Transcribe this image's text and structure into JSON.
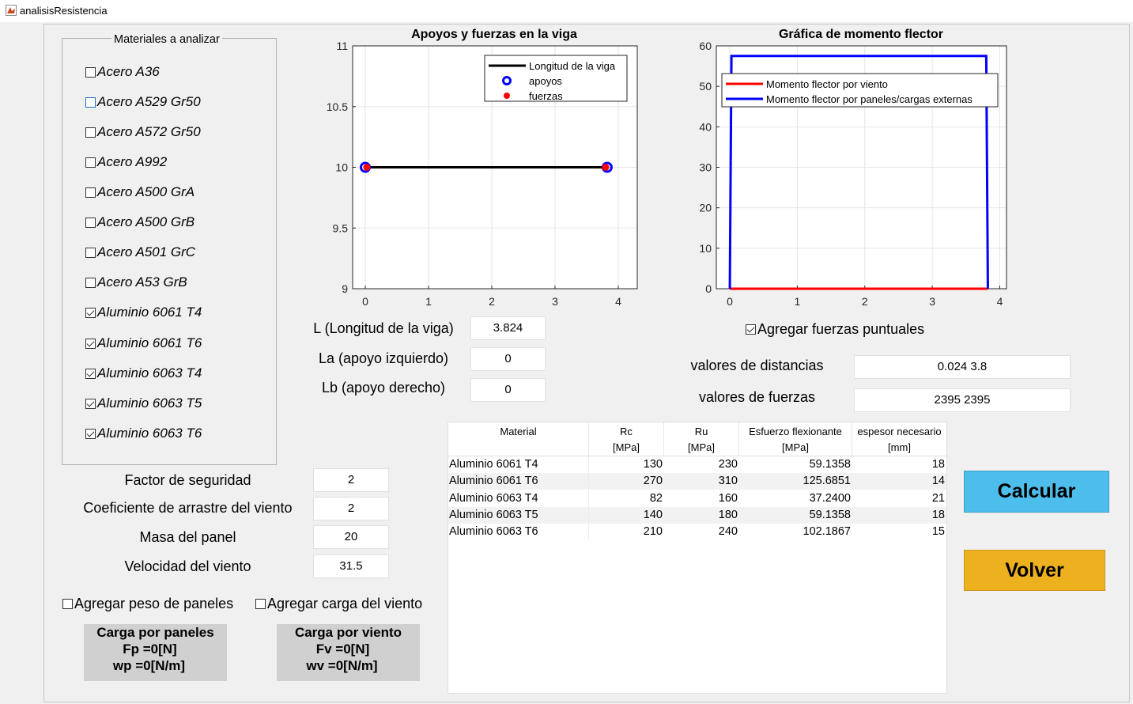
{
  "window": {
    "title": "analisisResistencia"
  },
  "materials": {
    "title": "Materiales a analizar",
    "items": [
      {
        "label": "Acero A36",
        "checked": false
      },
      {
        "label": "Acero A529 Gr50",
        "checked": false
      },
      {
        "label": "Acero A572 Gr50",
        "checked": false
      },
      {
        "label": "Acero A992",
        "checked": false
      },
      {
        "label": "Acero A500 GrA",
        "checked": false
      },
      {
        "label": "Acero A500 GrB",
        "checked": false
      },
      {
        "label": "Acero A501 GrC",
        "checked": false
      },
      {
        "label": "Acero A53 GrB",
        "checked": false
      },
      {
        "label": "Aluminio 6061 T4",
        "checked": true
      },
      {
        "label": "Aluminio 6061 T6",
        "checked": true
      },
      {
        "label": "Aluminio 6063 T4",
        "checked": true
      },
      {
        "label": "Aluminio 6063 T5",
        "checked": true
      },
      {
        "label": "Aluminio 6063 T6",
        "checked": true
      }
    ]
  },
  "beam": {
    "L_label": "L (Longitud de la viga)",
    "L_value": "3.824",
    "La_label": "La (apoyo izquierdo)",
    "La_value": "0",
    "Lb_label": "Lb (apoyo derecho)",
    "Lb_value": "0"
  },
  "params": {
    "safety_label": "Factor de seguridad",
    "safety_value": "2",
    "drag_label": "Coeficiente de arrastre del viento",
    "drag_value": "2",
    "mass_label": "Masa del panel",
    "mass_value": "20",
    "wind_label": "Velocidad del viento",
    "wind_value": "31.5"
  },
  "options": {
    "panel_weight_label": "Agregar peso de paneles",
    "panel_weight_checked": false,
    "wind_load_label": "Agregar carga del viento",
    "wind_load_checked": false,
    "point_forces_label": "Agregar fuerzas puntuales",
    "point_forces_checked": true
  },
  "loads": {
    "panel_title": "Carga por paneles",
    "panel_fp": "Fp =0[N]",
    "panel_wp": "wp =0[N/m]",
    "wind_title": "Carga por viento",
    "wind_fv": "Fv =0[N]",
    "wind_wv": "wv =0[N/m]"
  },
  "point_forces": {
    "distances_label": "valores de distancias",
    "distances_value": "0.024  3.8",
    "forces_label": "valores de fuerzas",
    "forces_value": "2395  2395"
  },
  "buttons": {
    "calc": "Calcular",
    "back": "Volver"
  },
  "results_table": {
    "headers": [
      {
        "line1": "Material",
        "line2": ""
      },
      {
        "line1": "Rc",
        "line2": "[MPa]"
      },
      {
        "line1": "Ru",
        "line2": "[MPa]"
      },
      {
        "line1": "Esfuerzo flexionante",
        "line2": "[MPa]"
      },
      {
        "line1": "espesor necesario",
        "line2": "[mm]"
      }
    ],
    "rows": [
      [
        "Aluminio 6061 T4",
        "130",
        "230",
        "59.1358",
        "18"
      ],
      [
        "Aluminio 6061 T6",
        "270",
        "310",
        "125.6851",
        "14"
      ],
      [
        "Aluminio 6063 T4",
        "82",
        "160",
        "37.2400",
        "21"
      ],
      [
        "Aluminio 6063 T5",
        "140",
        "180",
        "59.1358",
        "18"
      ],
      [
        "Aluminio 6063 T6",
        "210",
        "240",
        "102.1867",
        "15"
      ]
    ]
  },
  "chart_data": [
    {
      "type": "line",
      "title": "Apoyos y fuerzas en la viga",
      "xlim": [
        -0.2,
        4.3
      ],
      "ylim": [
        9,
        11
      ],
      "xticks": [
        "0",
        "1",
        "2",
        "3",
        "4"
      ],
      "yticks": [
        "9",
        "9.5",
        "10",
        "10.5",
        "11"
      ],
      "grid": true,
      "legend_position": "top-right",
      "series": [
        {
          "name": "Longitud de la viga",
          "color": "#000000",
          "style": "line",
          "x": [
            0,
            3.824
          ],
          "y": [
            10,
            10
          ]
        },
        {
          "name": "apoyos",
          "color": "#0000ff",
          "style": "circle",
          "x": [
            0,
            3.824
          ],
          "y": [
            10,
            10
          ]
        },
        {
          "name": "fuerzas",
          "color": "#ff0000",
          "style": "dot",
          "x": [
            0.024,
            3.8
          ],
          "y": [
            10,
            10
          ]
        }
      ]
    },
    {
      "type": "line",
      "title": "Gráfica de momento flector",
      "xlim": [
        -0.2,
        4.1
      ],
      "ylim": [
        0,
        60
      ],
      "xticks": [
        "0",
        "1",
        "2",
        "3",
        "4"
      ],
      "yticks": [
        "0",
        "10",
        "20",
        "30",
        "40",
        "50",
        "60"
      ],
      "grid": true,
      "legend_position": "top-left",
      "series": [
        {
          "name": "Momento flector por viento",
          "color": "#ff0000",
          "x": [
            0,
            3.824
          ],
          "y": [
            0,
            0
          ]
        },
        {
          "name": "Momento flector por paneles/cargas externas",
          "color": "#0000ff",
          "x": [
            0,
            0.024,
            3.8,
            3.824
          ],
          "y": [
            0,
            57.5,
            57.5,
            0
          ]
        }
      ]
    }
  ]
}
